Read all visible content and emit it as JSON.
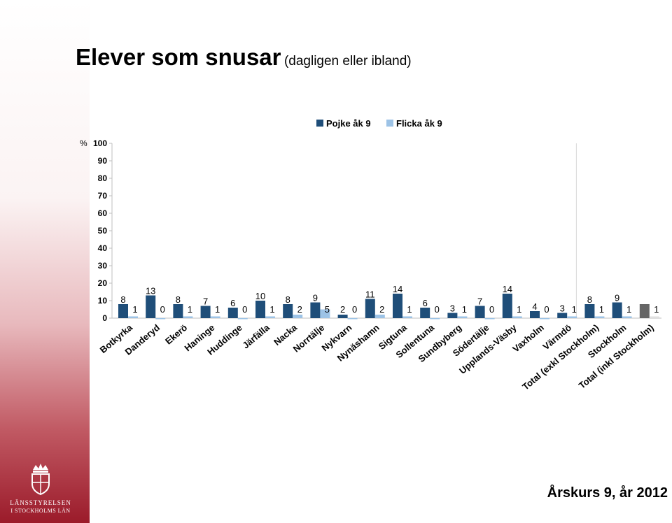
{
  "title": "Elever som snusar",
  "subtitle": "(dagligen eller ibland)",
  "footer": "Årskurs 9, år 2012",
  "logo": {
    "line1": "LÄNSSTYRELSEN",
    "line2": "I STOCKHOLMS LÄN",
    "icon": "crown-coat-of-arms-icon"
  },
  "colors": {
    "pojke": "#1f4e79",
    "flicka": "#9dc3e6",
    "total_pojke": "#666666",
    "total_flicka": "#e0e0e0",
    "sidebar_dark": "#9b1b2a"
  },
  "chart_data": {
    "type": "bar",
    "ylabel": "%",
    "ylim": [
      0,
      100
    ],
    "yticks": [
      0,
      10,
      20,
      30,
      40,
      50,
      60,
      70,
      80,
      90,
      100
    ],
    "legend_position": "top",
    "categories": [
      "Botkyrka",
      "Danderyd",
      "Ekerö",
      "Haninge",
      "Huddinge",
      "Järfälla",
      "Nacka",
      "Norrtälje",
      "Nykvarn",
      "Nynäshamn",
      "Sigtuna",
      "Sollentuna",
      "Sundbyberg",
      "Södertälje",
      "Upplands-Väsby",
      "Vaxholm",
      "Värmdö",
      "Total (exkl Stockholm)",
      "Stockholm",
      "Total (inkl Stockholm)"
    ],
    "series": [
      {
        "name": "Pojke åk 9",
        "values": [
          8,
          13,
          8,
          7,
          6,
          10,
          8,
          9,
          2,
          11,
          14,
          6,
          3,
          7,
          14,
          4,
          3,
          8,
          9,
          8
        ]
      },
      {
        "name": "Flicka åk 9",
        "values": [
          1,
          0,
          1,
          1,
          0,
          1,
          2,
          5,
          0,
          2,
          1,
          0,
          1,
          0,
          1,
          0,
          1,
          1,
          1,
          1
        ]
      }
    ]
  }
}
